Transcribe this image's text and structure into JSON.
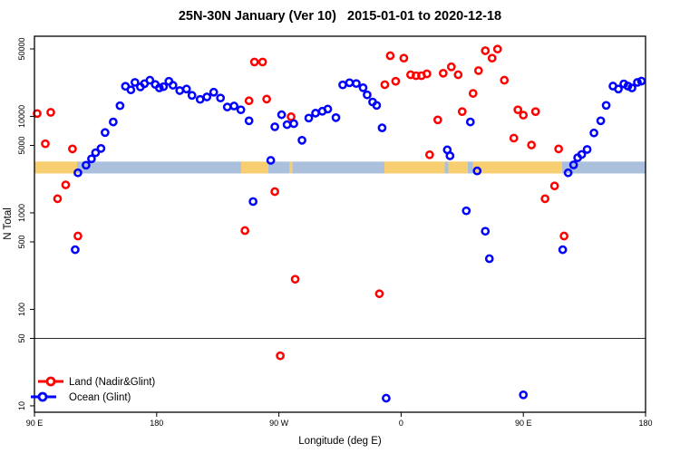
{
  "title": "25N-30N January (Ver 10)   2015-01-01 to 2020-12-18",
  "colors": {
    "land_series": "#ff0000",
    "ocean_series": "#0000ff",
    "land_band": "#f7ce70",
    "ocean_band": "#abc0dc",
    "axis": "#000000",
    "reference_line": "#2b2b2b"
  },
  "chart_data": {
    "type": "scatter",
    "title": "25N-30N January (Ver 10)   2015-01-01 to 2020-12-18",
    "xlabel": "Longitude (deg E)",
    "ylabel": "N Total",
    "y_scale": "log",
    "ylim": [
      10,
      50000
    ],
    "y_ticks": [
      10,
      50,
      100,
      500,
      1000,
      5000,
      10000,
      50000
    ],
    "x_range_deg": [
      0,
      450
    ],
    "x_ticks": [
      {
        "deg": 0,
        "label": "90 E"
      },
      {
        "deg": 90,
        "label": "180"
      },
      {
        "deg": 180,
        "label": "90 W"
      },
      {
        "deg": 270,
        "label": "0"
      },
      {
        "deg": 360,
        "label": "90 E"
      },
      {
        "deg": 450,
        "label": "180"
      }
    ],
    "reference_line_y": 50,
    "grid": "off",
    "legend_position": "bottom-left",
    "legend": [
      {
        "label": "Land (Nadir&Glint)",
        "color_key": "land_series"
      },
      {
        "label": "Ocean (Glint)",
        "color_key": "ocean_series"
      }
    ],
    "surface_band": {
      "description": "land/ocean surface-type strip along 25N-30N",
      "value_top": 3400,
      "value_bottom": 2560,
      "segments": [
        {
          "from_deg": 0,
          "to_deg": 31.4,
          "type": "land"
        },
        {
          "from_deg": 31.4,
          "to_deg": 152.2,
          "type": "ocean"
        },
        {
          "from_deg": 152.2,
          "to_deg": 172.2,
          "type": "land"
        },
        {
          "from_deg": 172.2,
          "to_deg": 187.9,
          "type": "ocean"
        },
        {
          "from_deg": 187.9,
          "to_deg": 189.9,
          "type": "land"
        },
        {
          "from_deg": 189.9,
          "to_deg": 257.7,
          "type": "ocean"
        },
        {
          "from_deg": 257.7,
          "to_deg": 302.1,
          "type": "land"
        },
        {
          "from_deg": 302.1,
          "to_deg": 304.8,
          "type": "ocean"
        },
        {
          "from_deg": 304.8,
          "to_deg": 319.1,
          "type": "land"
        },
        {
          "from_deg": 319.1,
          "to_deg": 322.8,
          "type": "ocean"
        },
        {
          "from_deg": 322.8,
          "to_deg": 388.5,
          "type": "land"
        },
        {
          "from_deg": 388.5,
          "to_deg": 450,
          "type": "ocean"
        }
      ]
    },
    "series": [
      {
        "name": "Land (Nadir&Glint)",
        "color_key": "land_series",
        "points": [
          [
            2,
            10700
          ],
          [
            8,
            5200
          ],
          [
            12,
            11000
          ],
          [
            17,
            1400
          ],
          [
            23,
            1950
          ],
          [
            28,
            4600
          ],
          [
            32,
            575
          ],
          [
            155,
            655
          ],
          [
            158,
            14500
          ],
          [
            162,
            36600
          ],
          [
            168,
            36600
          ],
          [
            171,
            15100
          ],
          [
            177,
            1660
          ],
          [
            181,
            33
          ],
          [
            189,
            9900
          ],
          [
            192,
            205
          ],
          [
            254,
            145
          ],
          [
            258,
            21300
          ],
          [
            262,
            42500
          ],
          [
            266,
            23100
          ],
          [
            272,
            40100
          ],
          [
            277,
            27000
          ],
          [
            281,
            26400
          ],
          [
            285,
            26400
          ],
          [
            289,
            27600
          ],
          [
            291,
            4000
          ],
          [
            297,
            9200
          ],
          [
            301,
            28000
          ],
          [
            307,
            32600
          ],
          [
            312,
            27000
          ],
          [
            315,
            11200
          ],
          [
            323,
            17300
          ],
          [
            327,
            29800
          ],
          [
            332,
            47900
          ],
          [
            337,
            40100
          ],
          [
            341,
            49800
          ],
          [
            346,
            23700
          ],
          [
            353,
            5950
          ],
          [
            356,
            11700
          ],
          [
            360,
            10300
          ],
          [
            366,
            5050
          ],
          [
            369,
            11200
          ],
          [
            376,
            1400
          ],
          [
            383,
            1900
          ],
          [
            386,
            4600
          ],
          [
            390,
            575
          ]
        ]
      },
      {
        "name": "Ocean (Glint)",
        "color_key": "ocean_series",
        "points": [
          [
            30,
            415
          ],
          [
            32,
            2600
          ],
          [
            38,
            3120
          ],
          [
            42,
            3630
          ],
          [
            45,
            4200
          ],
          [
            49,
            4650
          ],
          [
            52,
            6800
          ],
          [
            58,
            8750
          ],
          [
            63,
            12900
          ],
          [
            67,
            20500
          ],
          [
            71,
            18800
          ],
          [
            74,
            22500
          ],
          [
            78,
            20200
          ],
          [
            81,
            21800
          ],
          [
            85,
            23700
          ],
          [
            89,
            21400
          ],
          [
            92,
            19700
          ],
          [
            95,
            20300
          ],
          [
            99,
            23100
          ],
          [
            102,
            21000
          ],
          [
            107,
            18500
          ],
          [
            112,
            19200
          ],
          [
            116,
            16500
          ],
          [
            122,
            15000
          ],
          [
            127,
            15900
          ],
          [
            132,
            17800
          ],
          [
            137,
            15500
          ],
          [
            142,
            12500
          ],
          [
            147,
            12800
          ],
          [
            152,
            11700
          ],
          [
            158,
            9000
          ],
          [
            161,
            1310
          ],
          [
            174,
            3500
          ],
          [
            177,
            7800
          ],
          [
            182,
            10400
          ],
          [
            186,
            8200
          ],
          [
            191,
            8400
          ],
          [
            197,
            5650
          ],
          [
            202,
            9600
          ],
          [
            207,
            10800
          ],
          [
            212,
            11300
          ],
          [
            216,
            11900
          ],
          [
            222,
            9700
          ],
          [
            227,
            21200
          ],
          [
            232,
            22300
          ],
          [
            237,
            21900
          ],
          [
            242,
            19800
          ],
          [
            245,
            16700
          ],
          [
            249,
            14100
          ],
          [
            252,
            13000
          ],
          [
            256,
            7600
          ],
          [
            259,
            12
          ],
          [
            304,
            4500
          ],
          [
            306,
            3900
          ],
          [
            318,
            1050
          ],
          [
            321,
            8750
          ],
          [
            326,
            2720
          ],
          [
            332,
            645
          ],
          [
            335,
            335
          ],
          [
            360,
            13
          ],
          [
            389,
            415
          ],
          [
            393,
            2600
          ],
          [
            397,
            3140
          ],
          [
            400,
            3730
          ],
          [
            403,
            4030
          ],
          [
            407,
            4540
          ],
          [
            412,
            6730
          ],
          [
            417,
            9000
          ],
          [
            421,
            13000
          ],
          [
            426,
            20600
          ],
          [
            430,
            19200
          ],
          [
            434,
            21700
          ],
          [
            437,
            20600
          ],
          [
            440,
            19700
          ],
          [
            444,
            22500
          ],
          [
            447,
            23200
          ]
        ]
      }
    ]
  }
}
